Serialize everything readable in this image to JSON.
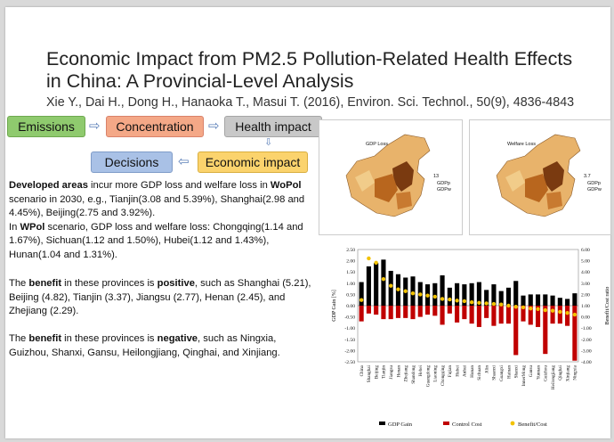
{
  "title": "Economic Impact from PM2.5 Pollution-Related Health Effects in China: A Provincial-Level Analysis",
  "citation": "Xie Y., Dai H., Dong H., Hanaoka T., Masui T. (2016), Environ. Sci. Technol., 50(9), 4836-4843",
  "flow": {
    "emissions": "Emissions",
    "concentration": "Concentration",
    "health_impact": "Health impact",
    "decisions": "Decisions",
    "economic_impact": "Economic impact"
  },
  "paragraph1": {
    "lead_bold": "Developed areas",
    "t1": " incur more GDP loss and welfare loss in ",
    "wopol": "WoPol",
    "t2": " scenario in 2030, e.g., Tianjin(3.08 and 5.39%), Shanghai(2.98 and 4.45%), Beijing(2.75 and 3.92%).",
    "t3": "In ",
    "wpol": "WPol",
    "t4": " scenario, GDP loss and welfare loss: Chongqing(1.14 and 1.67%), Sichuan(1.12 and 1.50%), Hubei(1.12 and 1.43%), Hunan(1.04 and 1.31%)."
  },
  "paragraph2": {
    "t1": "The ",
    "benefit": "benefit",
    "t2": " in these provinces is ",
    "positive": "positive",
    "t3": ", such as Shanghai (5.21), Beijing (4.82), Tianjin (3.37), Jiangsu (2.77), Henan (2.45), and Zhejiang (2.29)."
  },
  "paragraph3": {
    "t1": "The ",
    "benefit": "benefit",
    "t2": " in these provinces is ",
    "negative": "negative",
    "t3": ", such as Ningxia, Guizhou, Shanxi, Gansu, Heilongjiang, Qinghai, and Xinjiang."
  },
  "maps": [
    {
      "label": "GDP Loss",
      "legend": [
        "13",
        "GDPp",
        "GDPw"
      ]
    },
    {
      "label": "Welfare Loss",
      "legend": [
        "3.7",
        "GDPp",
        "GDPw"
      ]
    }
  ],
  "colors": {
    "emissions_fill": "#8fca6e",
    "concentration_fill": "#f4a887",
    "health_fill": "#c8c8c8",
    "decisions_fill": "#a9c1e6",
    "economic_fill": "#fbd36d",
    "gdp_gain": "#000000",
    "control_cost": "#c00000",
    "benefit_cost": "#f2c200",
    "map_dark": "#7a3a10",
    "map_mid": "#b8661e",
    "map_light": "#e8b36b"
  },
  "chart_data": {
    "type": "bar",
    "ylabel_left": "GDP Gain [%]",
    "ylabel_right": "Benefit/Cost ratio",
    "yticks_left": [
      "2.50",
      "2.00",
      "1.50",
      "1.00",
      "0.50",
      "0.00",
      "-0.50",
      "-1.00",
      "-1.50",
      "-2.00",
      "-2.50"
    ],
    "yticks_right": [
      "6.00",
      "5.00",
      "4.00",
      "3.00",
      "2.00",
      "1.00",
      "0.00",
      "-1.00",
      "-2.00",
      "-3.00",
      "-4.00"
    ],
    "ylim_left": [
      -2.5,
      2.5
    ],
    "ylim_right": [
      -4,
      6
    ],
    "categories": [
      "China",
      "Shanghai",
      "Beijing",
      "Tianjin",
      "Jiangsu",
      "Henan",
      "Zhejiang",
      "Shandong",
      "Hebei",
      "Guangdong",
      "Liaoning",
      "Chongqing",
      "Fujian",
      "Hubei",
      "Anhui",
      "Hunan",
      "Sichuan",
      "Jilin",
      "Shaanxi",
      "Guangxi",
      "Hainan",
      "Shanxi",
      "InnerMong",
      "Gansu",
      "Yunnan",
      "Guizhou",
      "Heilongjiang",
      "Qinghai",
      "Xinjiang",
      "Ningxia"
    ],
    "series": [
      {
        "name": "GDP Gain",
        "values": [
          1.05,
          1.75,
          1.9,
          2.05,
          1.55,
          1.4,
          1.25,
          1.3,
          1.05,
          0.95,
          1.0,
          1.35,
          0.8,
          1.0,
          0.95,
          1.0,
          1.05,
          0.7,
          0.95,
          0.65,
          0.8,
          1.1,
          0.45,
          0.5,
          0.5,
          0.5,
          0.45,
          0.35,
          0.3,
          0.55
        ]
      },
      {
        "name": "Control Cost",
        "values": [
          -0.7,
          -0.35,
          -0.4,
          -0.6,
          -0.6,
          -0.55,
          -0.55,
          -0.6,
          -0.5,
          -0.4,
          -0.45,
          -0.85,
          -0.35,
          -0.75,
          -0.6,
          -0.8,
          -0.95,
          -0.55,
          -0.9,
          -0.8,
          -0.8,
          -2.2,
          -0.7,
          -0.85,
          -0.95,
          -2.15,
          -0.8,
          -0.8,
          -0.9,
          -2.45
        ]
      },
      {
        "name": "Benefit/Cost",
        "values": [
          1.5,
          5.21,
          4.82,
          3.37,
          2.77,
          2.45,
          2.29,
          2.1,
          2.0,
          1.9,
          1.8,
          1.6,
          1.55,
          1.45,
          1.4,
          1.3,
          1.25,
          1.2,
          1.15,
          1.1,
          1.0,
          0.9,
          0.85,
          0.75,
          0.7,
          0.6,
          0.55,
          0.45,
          0.35,
          0.2
        ]
      }
    ],
    "legend": [
      "GDP Gain",
      "Control Cost",
      "Benefit/Cost"
    ],
    "legend_position": "bottom"
  }
}
